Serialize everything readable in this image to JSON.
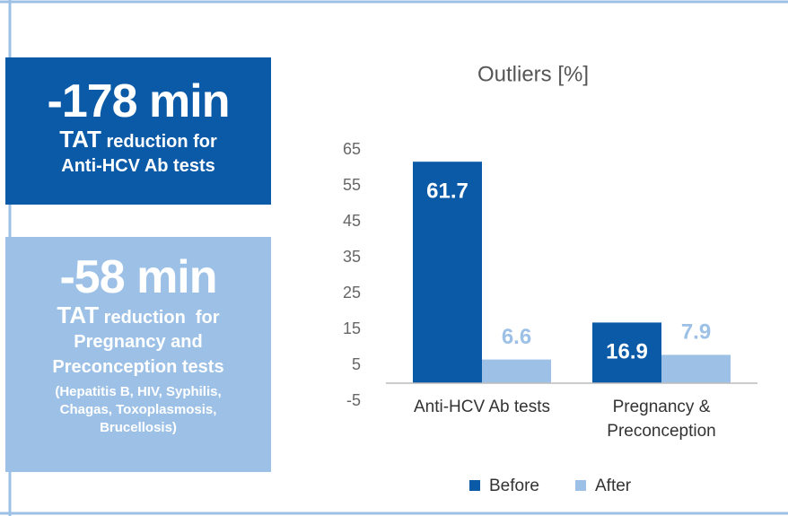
{
  "stats": [
    {
      "headline": "-178 min",
      "label_strong": "TAT",
      "label_rest": "reduction for",
      "subject": "Anti-HCV Ab tests"
    },
    {
      "headline": "-58 min",
      "label_strong": "TAT",
      "label_rest": "reduction  for",
      "subject": "Pregnancy and Preconception tests",
      "note": "(Hepatitis B, HIV, Syphilis, Chagas, Toxoplasmosis, Brucellosis)"
    }
  ],
  "chart_data": {
    "type": "bar",
    "title": "Outliers [%]",
    "categories": [
      "Anti-HCV Ab tests",
      "Pregnancy & Preconception"
    ],
    "series": [
      {
        "name": "Before",
        "color": "#0a5aa8",
        "values": [
          61.7,
          16.9
        ]
      },
      {
        "name": "After",
        "color": "#9dc1e6",
        "values": [
          6.6,
          7.9
        ]
      }
    ],
    "ylim": [
      -5,
      65
    ],
    "yticks": [
      -5,
      5,
      15,
      25,
      35,
      45,
      55,
      65
    ],
    "grid": false,
    "legend": "bottom"
  }
}
